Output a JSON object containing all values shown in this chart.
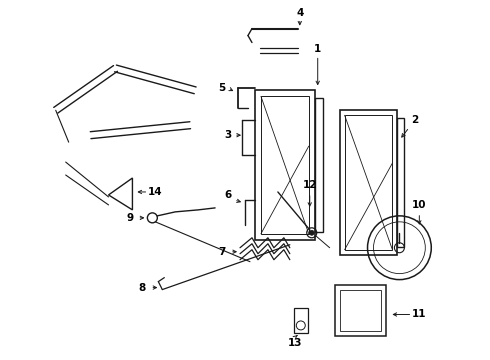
{
  "bg_color": "#ffffff",
  "line_color": "#1a1a1a",
  "label_color": "#000000",
  "figsize": [
    4.9,
    3.6
  ],
  "dpi": 100,
  "xlim": [
    0,
    490
  ],
  "ylim": [
    0,
    360
  ]
}
